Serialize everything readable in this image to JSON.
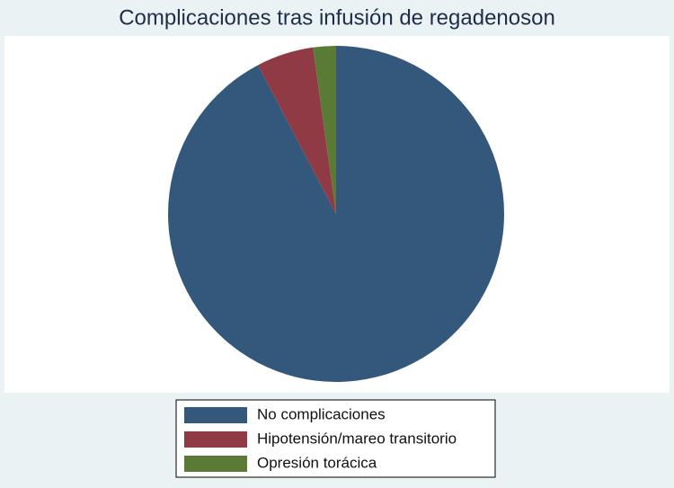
{
  "chart_data": {
    "type": "pie",
    "title": "Complicaciones tras infusión de regadenoson",
    "categories": [
      "No complicaciones",
      "Hipotensión/mareo transitorio",
      "Opresión torácica"
    ],
    "values": [
      92.3,
      5.5,
      2.2
    ],
    "colors": [
      "#34587c",
      "#8f3a44",
      "#5a7b35"
    ],
    "legend": "bottom"
  }
}
